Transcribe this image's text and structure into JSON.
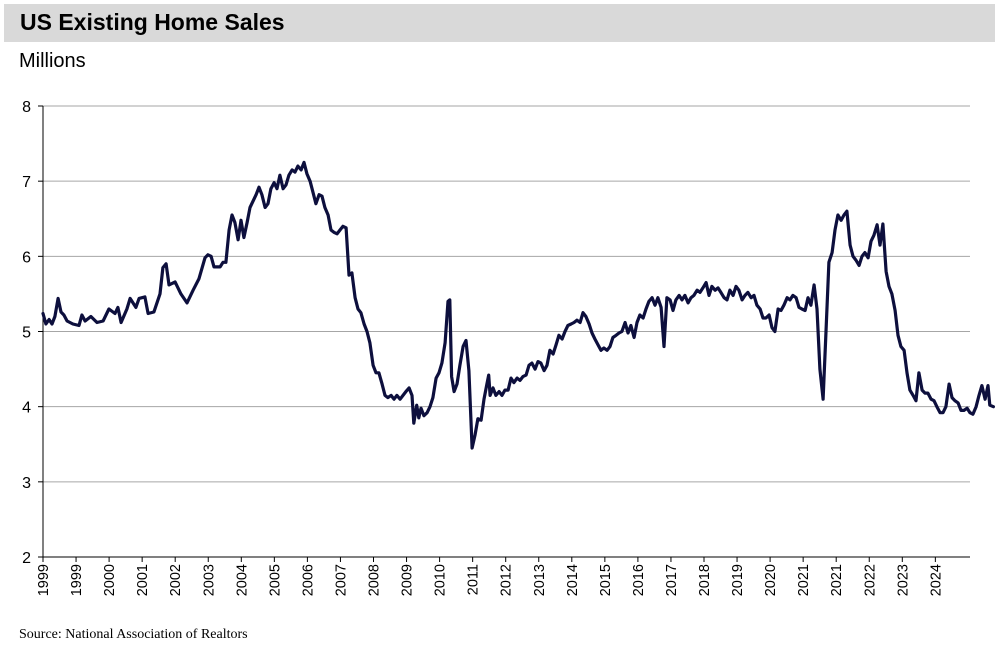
{
  "title": "US Existing Home Sales",
  "subtitle": "Millions",
  "source": "Source: National Association of Realtors",
  "colors": {
    "line": "#0d0f3d",
    "grid": "#a6a6a6",
    "title_bg": "#d9d9d9"
  },
  "chart_data": {
    "type": "line",
    "title": "US Existing Home Sales",
    "ylabel": "Millions",
    "xlabel": "",
    "ylim": [
      2,
      8
    ],
    "yticks": [
      2,
      3,
      4,
      5,
      6,
      7,
      8
    ],
    "xticks": [
      "1999",
      "1999",
      "2000",
      "2001",
      "2002",
      "2003",
      "2004",
      "2005",
      "2006",
      "2007",
      "2008",
      "2009",
      "2010",
      "2011",
      "2012",
      "2013",
      "2014",
      "2015",
      "2016",
      "2017",
      "2018",
      "2019",
      "2020",
      "2021",
      "2021",
      "2022",
      "2023",
      "2024"
    ],
    "grid": true,
    "legend": "none",
    "x_range": [
      1999.0,
      2024.75
    ],
    "series": [
      {
        "points": [
          [
            1999.0,
            5.24
          ],
          [
            1999.08,
            5.1
          ],
          [
            1999.17,
            5.16
          ],
          [
            1999.25,
            5.1
          ],
          [
            1999.33,
            5.2
          ],
          [
            1999.42,
            5.44
          ],
          [
            1999.5,
            5.26
          ],
          [
            1999.58,
            5.22
          ],
          [
            1999.67,
            5.14
          ],
          [
            1999.83,
            5.1
          ],
          [
            2000.0,
            5.08
          ],
          [
            2000.08,
            5.22
          ],
          [
            2000.17,
            5.14
          ],
          [
            2000.33,
            5.2
          ],
          [
            2000.5,
            5.12
          ],
          [
            2000.67,
            5.14
          ],
          [
            2000.83,
            5.3
          ],
          [
            2001.0,
            5.24
          ],
          [
            2001.08,
            5.32
          ],
          [
            2001.17,
            5.12
          ],
          [
            2001.33,
            5.3
          ],
          [
            2001.42,
            5.44
          ],
          [
            2001.58,
            5.32
          ],
          [
            2001.67,
            5.44
          ],
          [
            2001.83,
            5.46
          ],
          [
            2001.92,
            5.24
          ],
          [
            2002.08,
            5.26
          ],
          [
            2002.25,
            5.5
          ],
          [
            2002.33,
            5.85
          ],
          [
            2002.42,
            5.9
          ],
          [
            2002.5,
            5.62
          ],
          [
            2002.67,
            5.66
          ],
          [
            2002.83,
            5.5
          ],
          [
            2003.0,
            5.38
          ],
          [
            2003.17,
            5.55
          ],
          [
            2003.33,
            5.7
          ],
          [
            2003.5,
            5.98
          ],
          [
            2003.58,
            6.02
          ],
          [
            2003.67,
            6.0
          ],
          [
            2003.75,
            5.86
          ],
          [
            2003.92,
            5.86
          ],
          [
            2004.0,
            5.92
          ],
          [
            2004.08,
            5.92
          ],
          [
            2004.17,
            6.35
          ],
          [
            2004.25,
            6.55
          ],
          [
            2004.33,
            6.45
          ],
          [
            2004.42,
            6.22
          ],
          [
            2004.5,
            6.48
          ],
          [
            2004.58,
            6.25
          ],
          [
            2004.67,
            6.45
          ],
          [
            2004.75,
            6.65
          ],
          [
            2004.92,
            6.82
          ],
          [
            2005.0,
            6.92
          ],
          [
            2005.08,
            6.82
          ],
          [
            2005.17,
            6.65
          ],
          [
            2005.25,
            6.7
          ],
          [
            2005.33,
            6.9
          ],
          [
            2005.42,
            6.98
          ],
          [
            2005.5,
            6.9
          ],
          [
            2005.58,
            7.08
          ],
          [
            2005.67,
            6.9
          ],
          [
            2005.75,
            6.95
          ],
          [
            2005.83,
            7.08
          ],
          [
            2005.92,
            7.15
          ],
          [
            2006.0,
            7.12
          ],
          [
            2006.08,
            7.2
          ],
          [
            2006.17,
            7.15
          ],
          [
            2006.25,
            7.25
          ],
          [
            2006.33,
            7.1
          ],
          [
            2006.42,
            7.0
          ],
          [
            2006.5,
            6.85
          ],
          [
            2006.58,
            6.7
          ],
          [
            2006.67,
            6.82
          ],
          [
            2006.75,
            6.8
          ],
          [
            2006.83,
            6.65
          ],
          [
            2006.92,
            6.55
          ],
          [
            2007.0,
            6.35
          ],
          [
            2007.08,
            6.32
          ],
          [
            2007.17,
            6.3
          ],
          [
            2007.25,
            6.35
          ],
          [
            2007.33,
            6.4
          ],
          [
            2007.42,
            6.38
          ],
          [
            2007.5,
            5.75
          ],
          [
            2007.58,
            5.78
          ],
          [
            2007.67,
            5.45
          ],
          [
            2007.75,
            5.3
          ],
          [
            2007.83,
            5.25
          ],
          [
            2007.92,
            5.1
          ],
          [
            2008.0,
            5.0
          ],
          [
            2008.08,
            4.85
          ],
          [
            2008.17,
            4.55
          ],
          [
            2008.25,
            4.45
          ],
          [
            2008.33,
            4.45
          ],
          [
            2008.42,
            4.3
          ],
          [
            2008.5,
            4.15
          ],
          [
            2008.58,
            4.12
          ],
          [
            2008.67,
            4.15
          ],
          [
            2008.75,
            4.1
          ],
          [
            2008.83,
            4.15
          ],
          [
            2008.92,
            4.1
          ],
          [
            2009.0,
            4.15
          ],
          [
            2009.08,
            4.2
          ],
          [
            2009.17,
            4.25
          ],
          [
            2009.25,
            4.15
          ],
          [
            2009.3,
            3.78
          ],
          [
            2009.38,
            4.02
          ],
          [
            2009.44,
            3.85
          ],
          [
            2009.5,
            3.98
          ],
          [
            2009.58,
            3.88
          ],
          [
            2009.67,
            3.92
          ],
          [
            2009.75,
            4.0
          ],
          [
            2009.83,
            4.12
          ],
          [
            2009.92,
            4.38
          ],
          [
            2010.0,
            4.45
          ],
          [
            2010.08,
            4.58
          ],
          [
            2010.17,
            4.85
          ],
          [
            2010.25,
            5.4
          ],
          [
            2010.3,
            5.42
          ],
          [
            2010.35,
            4.4
          ],
          [
            2010.42,
            4.2
          ],
          [
            2010.5,
            4.3
          ],
          [
            2010.58,
            4.55
          ],
          [
            2010.67,
            4.8
          ],
          [
            2010.75,
            4.88
          ],
          [
            2010.83,
            4.48
          ],
          [
            2010.92,
            3.45
          ],
          [
            2011.0,
            3.62
          ],
          [
            2011.08,
            3.84
          ],
          [
            2011.17,
            3.82
          ],
          [
            2011.25,
            4.1
          ],
          [
            2011.33,
            4.3
          ],
          [
            2011.38,
            4.42
          ],
          [
            2011.42,
            4.15
          ],
          [
            2011.5,
            4.25
          ],
          [
            2011.58,
            4.15
          ],
          [
            2011.67,
            4.2
          ],
          [
            2011.75,
            4.15
          ],
          [
            2011.83,
            4.22
          ],
          [
            2011.92,
            4.22
          ],
          [
            2012.0,
            4.38
          ],
          [
            2012.08,
            4.32
          ],
          [
            2012.17,
            4.38
          ],
          [
            2012.25,
            4.35
          ],
          [
            2012.33,
            4.4
          ],
          [
            2012.42,
            4.42
          ],
          [
            2012.5,
            4.55
          ],
          [
            2012.58,
            4.58
          ],
          [
            2012.67,
            4.5
          ],
          [
            2012.75,
            4.6
          ],
          [
            2012.83,
            4.58
          ],
          [
            2012.92,
            4.48
          ],
          [
            2013.0,
            4.55
          ],
          [
            2013.08,
            4.75
          ],
          [
            2013.17,
            4.7
          ],
          [
            2013.25,
            4.82
          ],
          [
            2013.33,
            4.95
          ],
          [
            2013.42,
            4.9
          ],
          [
            2013.5,
            5.0
          ],
          [
            2013.58,
            5.08
          ],
          [
            2013.67,
            5.1
          ],
          [
            2013.75,
            5.12
          ],
          [
            2013.83,
            5.15
          ],
          [
            2013.92,
            5.12
          ],
          [
            2014.0,
            5.25
          ],
          [
            2014.08,
            5.2
          ],
          [
            2014.17,
            5.1
          ],
          [
            2014.25,
            4.98
          ],
          [
            2014.33,
            4.9
          ],
          [
            2014.42,
            4.82
          ],
          [
            2014.5,
            4.75
          ],
          [
            2014.58,
            4.78
          ],
          [
            2014.67,
            4.75
          ],
          [
            2014.75,
            4.8
          ],
          [
            2014.83,
            4.92
          ],
          [
            2014.92,
            4.95
          ],
          [
            2015.0,
            4.98
          ],
          [
            2015.08,
            5.0
          ],
          [
            2015.17,
            5.12
          ],
          [
            2015.25,
            4.98
          ],
          [
            2015.33,
            5.08
          ],
          [
            2015.42,
            4.92
          ],
          [
            2015.5,
            5.12
          ],
          [
            2015.58,
            5.22
          ],
          [
            2015.67,
            5.18
          ],
          [
            2015.75,
            5.3
          ],
          [
            2015.83,
            5.4
          ],
          [
            2015.92,
            5.45
          ],
          [
            2016.0,
            5.35
          ],
          [
            2016.08,
            5.45
          ],
          [
            2016.17,
            5.32
          ],
          [
            2016.25,
            4.8
          ],
          [
            2016.33,
            5.45
          ],
          [
            2016.42,
            5.42
          ],
          [
            2016.5,
            5.28
          ],
          [
            2016.58,
            5.42
          ],
          [
            2016.67,
            5.48
          ],
          [
            2016.75,
            5.42
          ],
          [
            2016.83,
            5.48
          ],
          [
            2016.92,
            5.38
          ],
          [
            2017.0,
            5.45
          ],
          [
            2017.08,
            5.48
          ],
          [
            2017.17,
            5.55
          ],
          [
            2017.25,
            5.52
          ],
          [
            2017.33,
            5.58
          ],
          [
            2017.42,
            5.65
          ],
          [
            2017.5,
            5.48
          ],
          [
            2017.58,
            5.6
          ],
          [
            2017.67,
            5.55
          ],
          [
            2017.75,
            5.58
          ],
          [
            2017.83,
            5.52
          ],
          [
            2017.92,
            5.45
          ],
          [
            2018.0,
            5.42
          ],
          [
            2018.08,
            5.55
          ],
          [
            2018.17,
            5.48
          ],
          [
            2018.25,
            5.6
          ],
          [
            2018.33,
            5.55
          ],
          [
            2018.42,
            5.42
          ],
          [
            2018.5,
            5.48
          ],
          [
            2018.58,
            5.52
          ],
          [
            2018.67,
            5.45
          ],
          [
            2018.75,
            5.48
          ],
          [
            2018.83,
            5.35
          ],
          [
            2018.92,
            5.3
          ],
          [
            2019.0,
            5.18
          ],
          [
            2019.08,
            5.18
          ],
          [
            2019.17,
            5.22
          ],
          [
            2019.25,
            5.05
          ],
          [
            2019.33,
            5.0
          ],
          [
            2019.42,
            5.3
          ],
          [
            2019.5,
            5.28
          ],
          [
            2019.58,
            5.35
          ],
          [
            2019.67,
            5.45
          ],
          [
            2019.75,
            5.42
          ],
          [
            2019.83,
            5.48
          ],
          [
            2019.92,
            5.45
          ],
          [
            2020.0,
            5.32
          ],
          [
            2020.08,
            5.3
          ],
          [
            2020.17,
            5.28
          ],
          [
            2020.25,
            5.45
          ],
          [
            2020.33,
            5.35
          ],
          [
            2020.42,
            5.62
          ],
          [
            2020.5,
            5.3
          ],
          [
            2020.58,
            4.5
          ],
          [
            2020.67,
            4.1
          ],
          [
            2020.75,
            5.0
          ],
          [
            2020.83,
            5.92
          ],
          [
            2020.92,
            6.05
          ],
          [
            2021.0,
            6.35
          ],
          [
            2021.08,
            6.55
          ],
          [
            2021.17,
            6.48
          ],
          [
            2021.25,
            6.55
          ],
          [
            2021.33,
            6.6
          ],
          [
            2021.42,
            6.15
          ],
          [
            2021.5,
            6.0
          ],
          [
            2021.58,
            5.95
          ],
          [
            2021.67,
            5.88
          ],
          [
            2021.75,
            6.0
          ],
          [
            2021.83,
            6.05
          ],
          [
            2021.92,
            5.98
          ],
          [
            2022.0,
            6.2
          ],
          [
            2022.08,
            6.28
          ],
          [
            2022.17,
            6.42
          ],
          [
            2022.25,
            6.15
          ],
          [
            2022.33,
            6.43
          ],
          [
            2022.42,
            5.8
          ],
          [
            2022.5,
            5.6
          ],
          [
            2022.58,
            5.5
          ],
          [
            2022.67,
            5.28
          ],
          [
            2022.75,
            4.95
          ],
          [
            2022.83,
            4.8
          ],
          [
            2022.92,
            4.75
          ],
          [
            2023.0,
            4.45
          ],
          [
            2023.08,
            4.22
          ],
          [
            2023.17,
            4.15
          ],
          [
            2023.25,
            4.08
          ],
          [
            2023.33,
            4.45
          ],
          [
            2023.42,
            4.22
          ],
          [
            2023.5,
            4.18
          ],
          [
            2023.58,
            4.18
          ],
          [
            2023.67,
            4.1
          ],
          [
            2023.75,
            4.08
          ],
          [
            2023.83,
            4.0
          ],
          [
            2023.92,
            3.92
          ],
          [
            2024.0,
            3.92
          ],
          [
            2024.08,
            4.0
          ],
          [
            2024.17,
            4.3
          ],
          [
            2024.25,
            4.12
          ],
          [
            2024.33,
            4.08
          ],
          [
            2024.42,
            4.05
          ],
          [
            2024.5,
            3.95
          ],
          [
            2024.58,
            3.95
          ],
          [
            2024.67,
            3.98
          ],
          [
            2024.75,
            3.92
          ],
          [
            2024.83,
            3.9
          ],
          [
            2024.92,
            4.0
          ],
          [
            2025.0,
            4.15
          ],
          [
            2025.08,
            4.28
          ],
          [
            2025.17,
            4.1
          ],
          [
            2025.25,
            4.28
          ],
          [
            2025.3,
            4.02
          ],
          [
            2025.4,
            4.0
          ]
        ]
      }
    ]
  }
}
